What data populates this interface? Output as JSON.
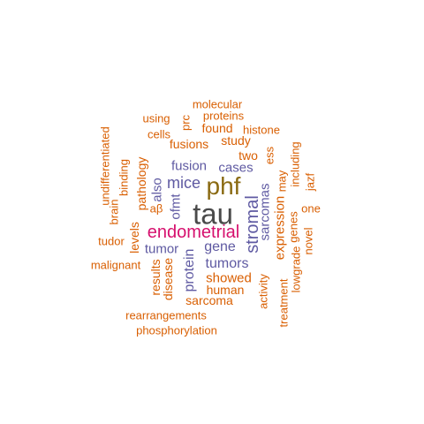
{
  "colors": {
    "dark": "#4a4a4a",
    "brown": "#8a6a12",
    "magenta": "#d6106e",
    "purple": "#5f5aa2",
    "orange": "#d95f02"
  },
  "words": [
    {
      "text": "tau"
    },
    {
      "text": "phf"
    },
    {
      "text": "endometrial"
    },
    {
      "text": "stromal"
    },
    {
      "text": "mice"
    },
    {
      "text": "gene"
    },
    {
      "text": "tumors"
    },
    {
      "text": "protein"
    },
    {
      "text": "fusion"
    },
    {
      "text": "cases"
    },
    {
      "text": "tumor"
    },
    {
      "text": "sarcomas"
    },
    {
      "text": "also"
    },
    {
      "text": "ofmt"
    },
    {
      "text": "expression"
    },
    {
      "text": "molecular"
    },
    {
      "text": "proteins"
    },
    {
      "text": "using"
    },
    {
      "text": "prc"
    },
    {
      "text": "found"
    },
    {
      "text": "histone"
    },
    {
      "text": "cells"
    },
    {
      "text": "study"
    },
    {
      "text": "fusions"
    },
    {
      "text": "two"
    },
    {
      "text": "ess"
    },
    {
      "text": "including"
    },
    {
      "text": "may"
    },
    {
      "text": "jazf"
    },
    {
      "text": "undifferentiated"
    },
    {
      "text": "binding"
    },
    {
      "text": "pathology"
    },
    {
      "text": "brain"
    },
    {
      "text": "aβ"
    },
    {
      "text": "one"
    },
    {
      "text": "levels"
    },
    {
      "text": "genes"
    },
    {
      "text": "novel"
    },
    {
      "text": "tudor"
    },
    {
      "text": "lowgrade"
    },
    {
      "text": "malignant"
    },
    {
      "text": "disease"
    },
    {
      "text": "results"
    },
    {
      "text": "showed"
    },
    {
      "text": "treatment"
    },
    {
      "text": "human"
    },
    {
      "text": "activity"
    },
    {
      "text": "sarcoma"
    },
    {
      "text": "rearrangements"
    },
    {
      "text": "phosphorylation"
    }
  ]
}
